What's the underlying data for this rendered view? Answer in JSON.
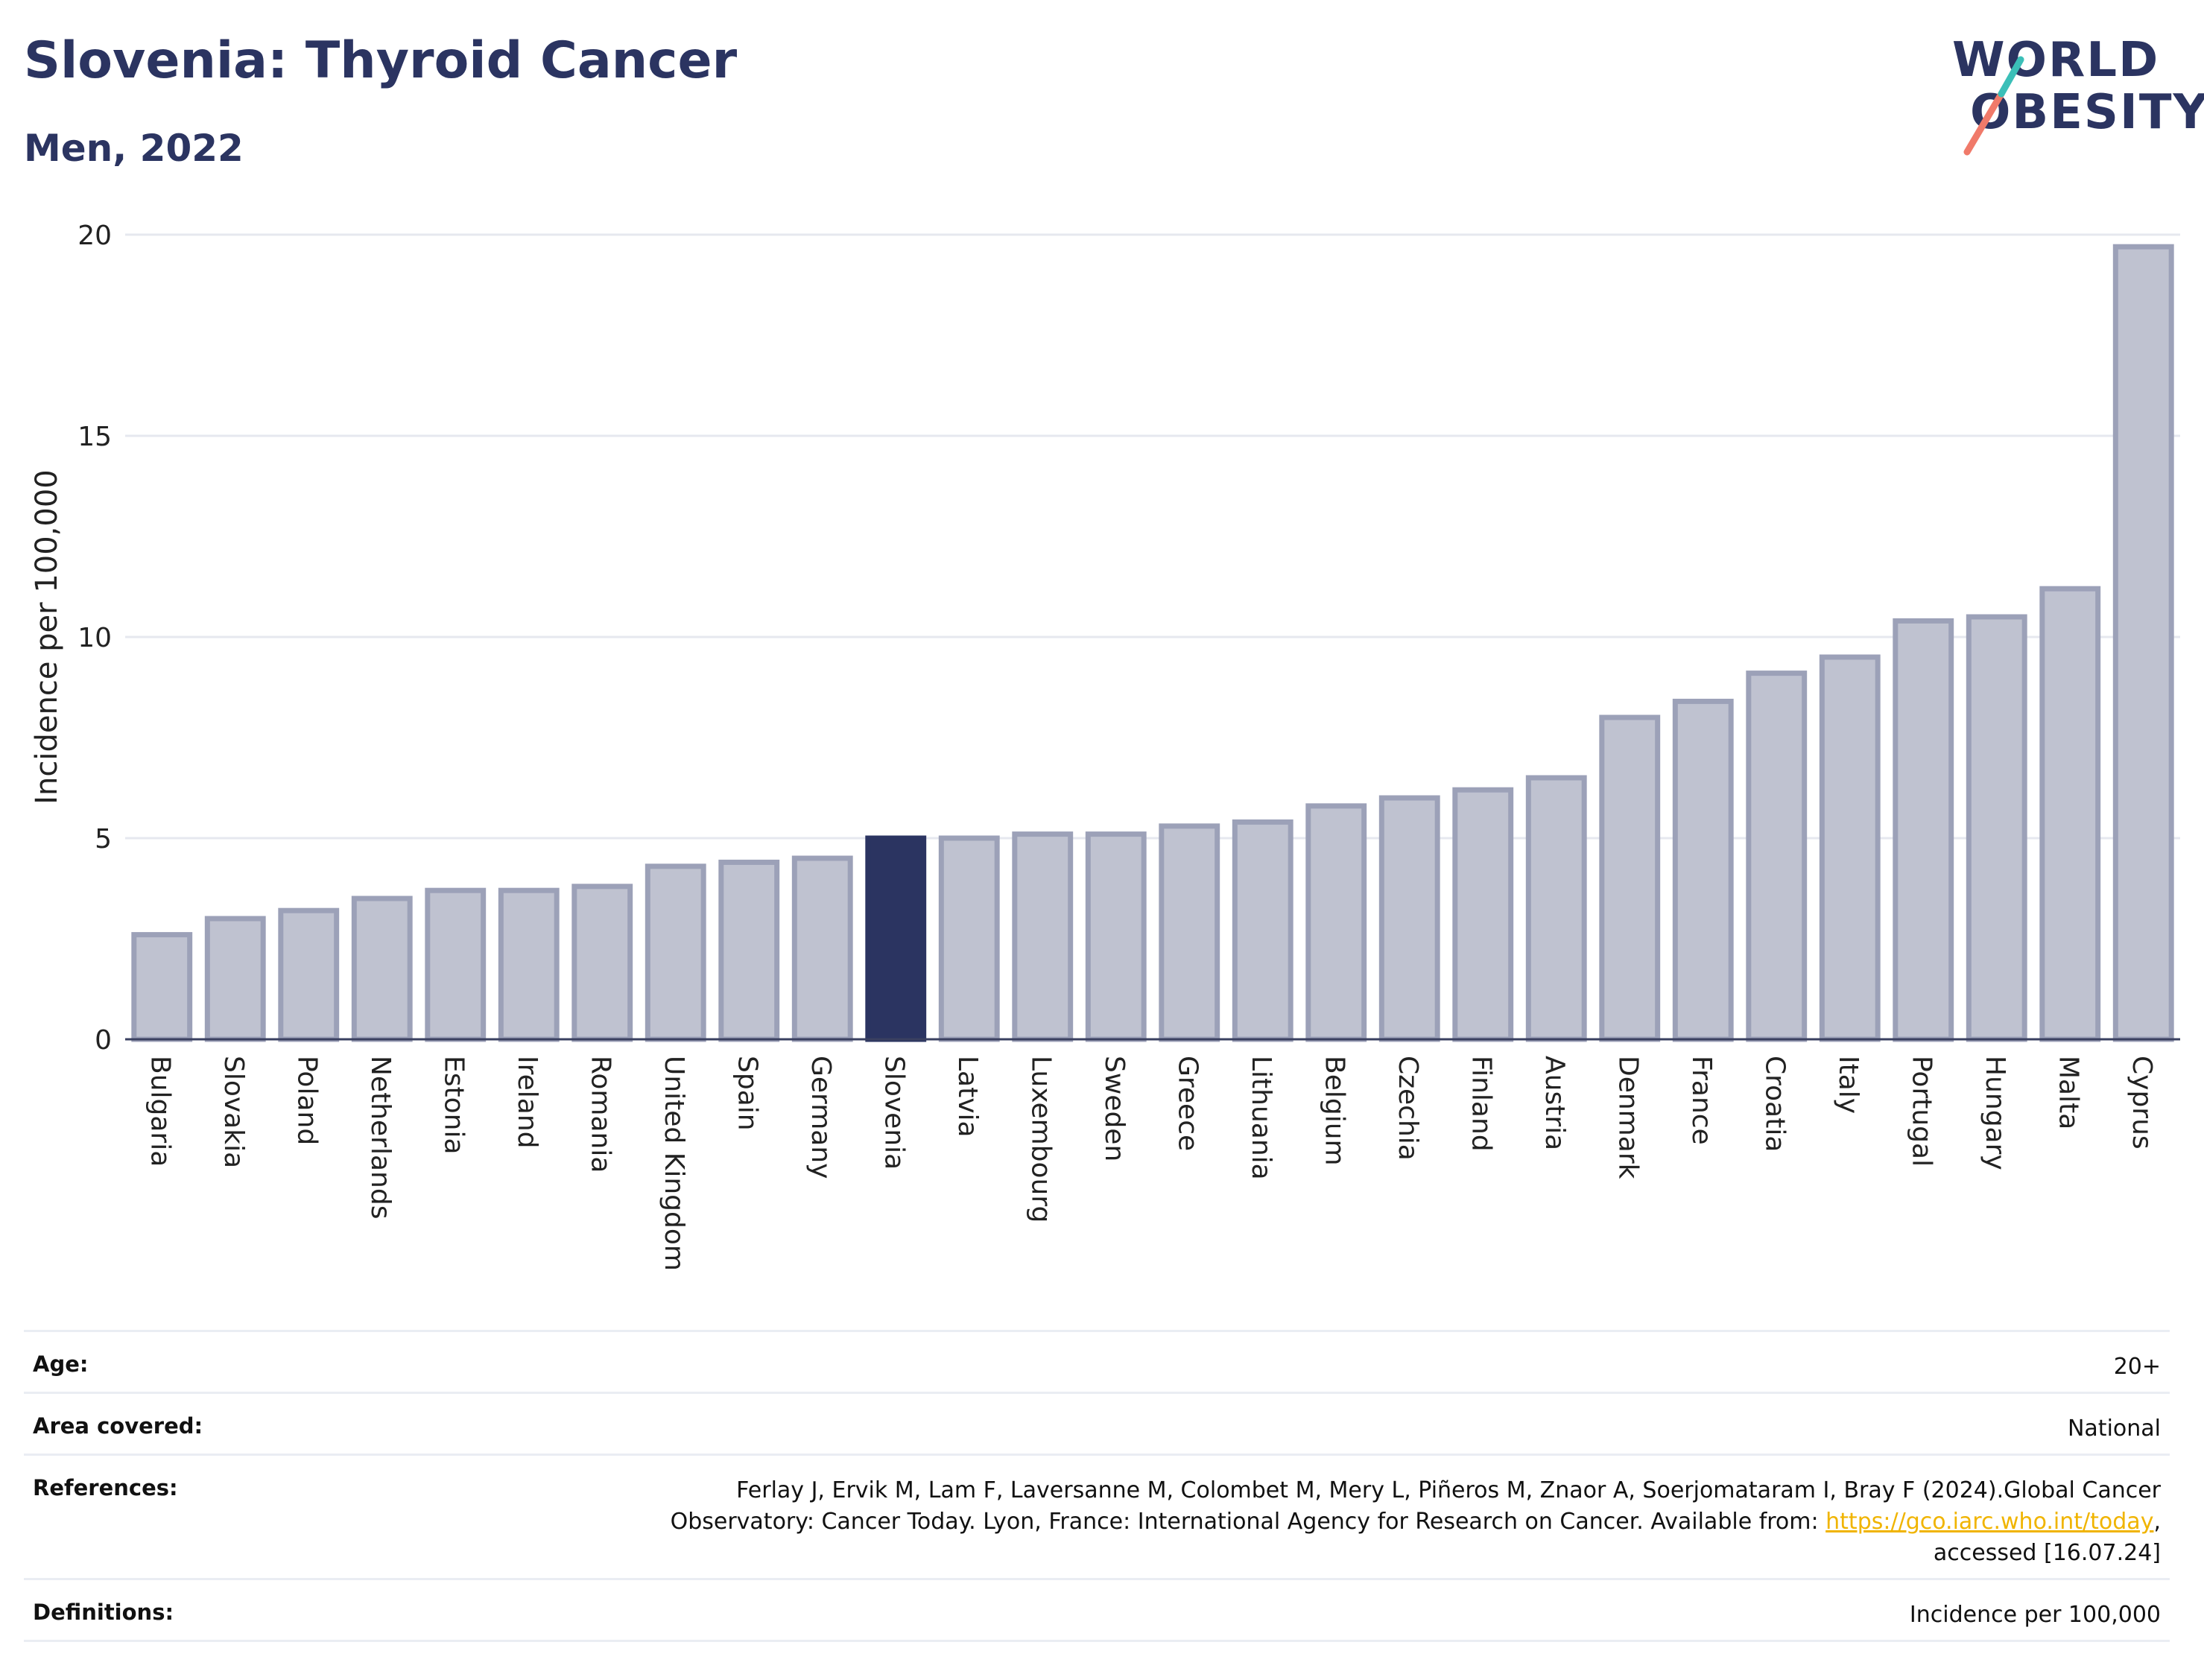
{
  "title": "Slovenia: Thyroid Cancer",
  "subtitle": "Men, 2022",
  "logo": {
    "line1": "WORLD",
    "line2": "OBESITY"
  },
  "colors": {
    "bar": "#bfc2d0",
    "bar_border": "#9ca1b8",
    "highlight": "#2b3461",
    "grid": "#e6e8ef",
    "logo_teal": "#3bbfb8",
    "logo_coral": "#f07a6a"
  },
  "chart_data": {
    "type": "bar",
    "categories": [
      "Bulgaria",
      "Slovakia",
      "Poland",
      "Netherlands",
      "Estonia",
      "Ireland",
      "Romania",
      "United Kingdom",
      "Spain",
      "Germany",
      "Slovenia",
      "Latvia",
      "Luxembourg",
      "Sweden",
      "Greece",
      "Lithuania",
      "Belgium",
      "Czechia",
      "Finland",
      "Austria",
      "Denmark",
      "France",
      "Croatia",
      "Italy",
      "Portugal",
      "Hungary",
      "Malta",
      "Cyprus"
    ],
    "values": [
      2.6,
      3.0,
      3.2,
      3.5,
      3.7,
      3.7,
      3.8,
      4.3,
      4.4,
      4.5,
      5.0,
      5.0,
      5.1,
      5.1,
      5.3,
      5.4,
      5.8,
      6.0,
      6.2,
      6.5,
      8.0,
      8.4,
      9.1,
      9.5,
      10.4,
      10.5,
      11.2,
      19.7
    ],
    "highlight": "Slovenia",
    "ylabel": "Incidence per 100,000",
    "ylim": [
      0,
      20
    ],
    "yticks": [
      0,
      5,
      10,
      15,
      20
    ],
    "grid": true
  },
  "table": {
    "age": {
      "label": "Age:",
      "value": "20+"
    },
    "area": {
      "label": "Area covered:",
      "value": "National"
    },
    "references": {
      "label": "References:",
      "line1": "Ferlay J, Ervik M, Lam F, Laversanne M, Colombet M, Mery L, Piñeros M, Znaor A, Soerjomataram I, Bray F (2024).Global Cancer",
      "line2_pre": "Observatory: Cancer Today. Lyon, France: International Agency for Research on Cancer. Available from: ",
      "link": "https://gco.iarc.who.int/today",
      "line2_post": ",",
      "line3": "accessed [16.07.24]"
    },
    "definitions": {
      "label": "Definitions:",
      "value": "Incidence per 100,000"
    }
  }
}
